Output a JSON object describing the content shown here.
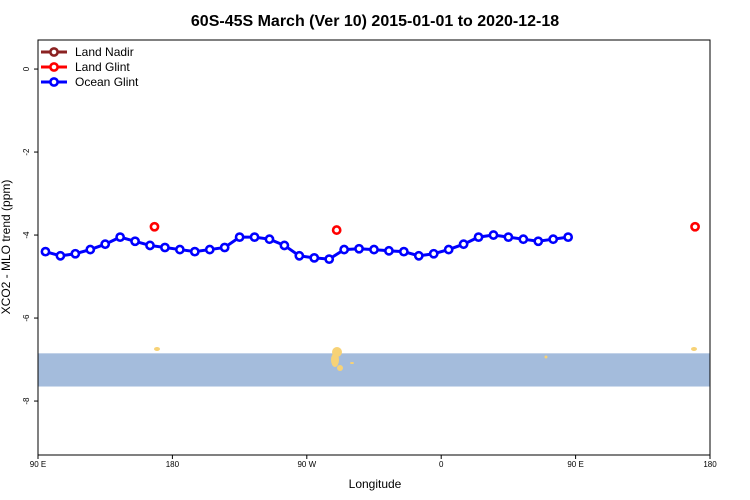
{
  "chart_data": {
    "type": "line",
    "title": "60S-45S March (Ver 10)   2015-01-01 to 2020-12-18",
    "xlabel": "Longitude",
    "ylabel": "XCO2 - MLO trend (ppm)",
    "xlim": [
      90,
      450
    ],
    "ylim": [
      -9.3,
      0.7
    ],
    "xticks": [
      {
        "value": 90,
        "label": "90 E"
      },
      {
        "value": 180,
        "label": "180"
      },
      {
        "value": 270,
        "label": "90 W"
      },
      {
        "value": 360,
        "label": "0"
      },
      {
        "value": 450,
        "label": "90 E"
      },
      {
        "value": 540,
        "label": "180"
      }
    ],
    "yticks": [
      {
        "value": 0,
        "label": "0"
      },
      {
        "value": -2,
        "label": "-2"
      },
      {
        "value": -4,
        "label": "-4"
      },
      {
        "value": -6,
        "label": "-6"
      },
      {
        "value": -8,
        "label": "-8"
      }
    ],
    "x_axis_display": {
      "min": 90,
      "max": 540
    },
    "grid": false,
    "legend_position": "top-left",
    "series": [
      {
        "name": "Land Nadir",
        "color": "#8b2222",
        "style": "line+markers",
        "x": [],
        "y": []
      },
      {
        "name": "Land Glint",
        "color": "#ff0000",
        "style": "markers",
        "x": [
          168,
          290,
          530
        ],
        "y": [
          -3.8,
          -3.88,
          -3.8
        ]
      },
      {
        "name": "Ocean Glint",
        "color": "#0000ff",
        "style": "line+markers",
        "x": [
          95,
          105,
          115,
          125,
          135,
          145,
          155,
          165,
          175,
          185,
          195,
          205,
          215,
          225,
          235,
          245,
          255,
          265,
          275,
          285,
          295,
          305,
          315,
          325,
          335,
          345,
          355,
          365,
          375,
          385,
          395,
          405,
          415,
          425,
          435,
          445
        ],
        "y": [
          -4.4,
          -4.5,
          -4.45,
          -4.35,
          -4.22,
          -4.05,
          -4.15,
          -4.25,
          -4.3,
          -4.35,
          -4.4,
          -4.35,
          -4.3,
          -4.05,
          -4.05,
          -4.1,
          -4.25,
          -4.5,
          -4.55,
          -4.58,
          -4.35,
          -4.33,
          -4.35,
          -4.38,
          -4.4,
          -4.5,
          -4.45,
          -4.35,
          -4.22,
          -4.05,
          -4.0,
          -4.05,
          -4.1,
          -4.15,
          -4.1,
          -4.05
        ]
      }
    ]
  },
  "map_strip": {
    "ocean_color": "#a4bcdc",
    "land_color": "#f7d276"
  }
}
